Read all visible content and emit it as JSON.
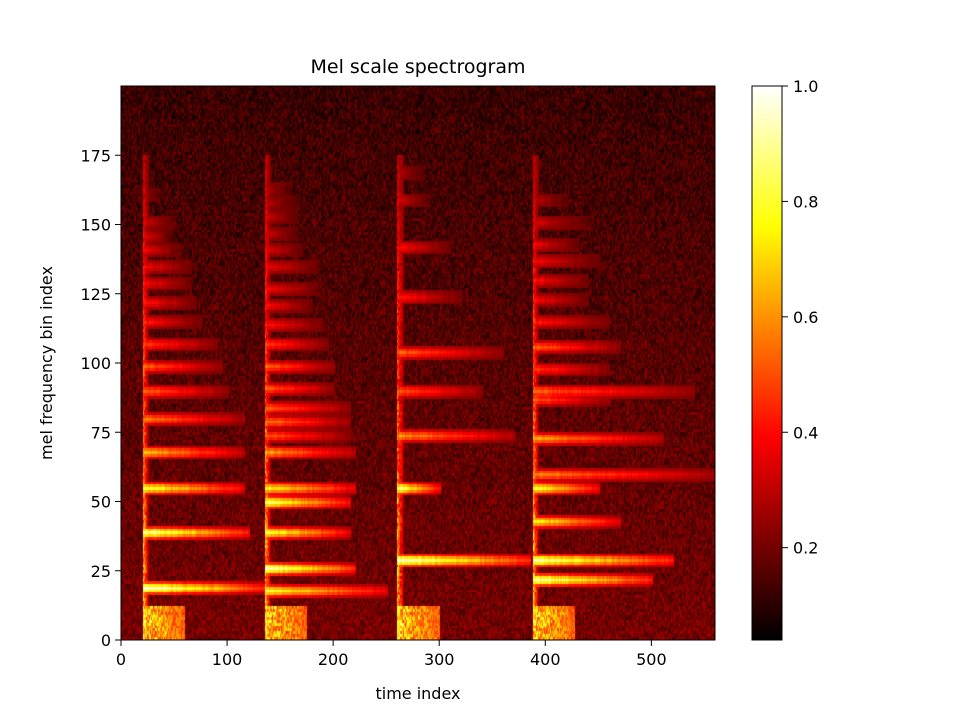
{
  "chart_data": {
    "type": "heatmap",
    "title": "Mel scale spectrogram",
    "xlabel": "time index",
    "ylabel": "mel frequency bin index",
    "xlim": [
      0,
      560
    ],
    "ylim": [
      0,
      200
    ],
    "x_ticks": [
      0,
      100,
      200,
      300,
      400,
      500
    ],
    "x_tick_labels": [
      "0",
      "100",
      "200",
      "300",
      "400",
      "500"
    ],
    "y_ticks": [
      0,
      25,
      50,
      75,
      100,
      125,
      150,
      175
    ],
    "y_tick_labels": [
      "0",
      "25",
      "50",
      "75",
      "100",
      "125",
      "150",
      "175"
    ],
    "colormap": "hot",
    "colorbar": {
      "range": [
        0.04,
        1.0
      ],
      "ticks": [
        0.2,
        0.4,
        0.6,
        0.8,
        1.0
      ],
      "tick_labels": [
        "0.2",
        "0.4",
        "0.6",
        "0.8",
        "1.0"
      ]
    },
    "background_level": 0.2,
    "notes": [
      {
        "onset": 20,
        "end": 135,
        "harmonics": [
          {
            "bin": 18,
            "level": 1.0,
            "decay_end": 135
          },
          {
            "bin": 38,
            "level": 0.95,
            "decay_end": 120
          },
          {
            "bin": 54,
            "level": 0.85,
            "decay_end": 115
          },
          {
            "bin": 67,
            "level": 0.7,
            "decay_end": 115
          },
          {
            "bin": 79,
            "level": 0.6,
            "decay_end": 115
          },
          {
            "bin": 89,
            "level": 0.55,
            "decay_end": 100
          },
          {
            "bin": 98,
            "level": 0.55,
            "decay_end": 95
          },
          {
            "bin": 106,
            "level": 0.5,
            "decay_end": 90
          },
          {
            "bin": 114,
            "level": 0.45,
            "decay_end": 75
          },
          {
            "bin": 121,
            "level": 0.45,
            "decay_end": 70
          },
          {
            "bin": 128,
            "level": 0.42,
            "decay_end": 65
          },
          {
            "bin": 134,
            "level": 0.42,
            "decay_end": 65
          },
          {
            "bin": 140,
            "level": 0.4,
            "decay_end": 55
          },
          {
            "bin": 145,
            "level": 0.38,
            "decay_end": 45
          },
          {
            "bin": 150,
            "level": 0.35,
            "decay_end": 50
          },
          {
            "bin": 160,
            "level": 0.3,
            "decay_end": 35
          }
        ]
      },
      {
        "onset": 135,
        "end": 260,
        "harmonics": [
          {
            "bin": 17,
            "level": 0.85,
            "decay_end": 250
          },
          {
            "bin": 25,
            "level": 1.0,
            "decay_end": 220
          },
          {
            "bin": 38,
            "level": 0.85,
            "decay_end": 215
          },
          {
            "bin": 49,
            "level": 0.9,
            "decay_end": 215
          },
          {
            "bin": 54,
            "level": 0.8,
            "decay_end": 220
          },
          {
            "bin": 67,
            "level": 0.65,
            "decay_end": 220
          },
          {
            "bin": 73,
            "level": 0.55,
            "decay_end": 215
          },
          {
            "bin": 78,
            "level": 0.6,
            "decay_end": 215
          },
          {
            "bin": 83,
            "level": 0.55,
            "decay_end": 215
          },
          {
            "bin": 90,
            "level": 0.55,
            "decay_end": 200
          },
          {
            "bin": 98,
            "level": 0.55,
            "decay_end": 200
          },
          {
            "bin": 106,
            "level": 0.5,
            "decay_end": 195
          },
          {
            "bin": 113,
            "level": 0.45,
            "decay_end": 190
          },
          {
            "bin": 120,
            "level": 0.42,
            "decay_end": 180
          },
          {
            "bin": 126,
            "level": 0.42,
            "decay_end": 185
          },
          {
            "bin": 134,
            "level": 0.4,
            "decay_end": 185
          },
          {
            "bin": 140,
            "level": 0.38,
            "decay_end": 170
          },
          {
            "bin": 146,
            "level": 0.35,
            "decay_end": 165
          },
          {
            "bin": 152,
            "level": 0.35,
            "decay_end": 165
          },
          {
            "bin": 157,
            "level": 0.32,
            "decay_end": 165
          },
          {
            "bin": 162,
            "level": 0.3,
            "decay_end": 160
          }
        ]
      },
      {
        "onset": 260,
        "end": 388,
        "harmonics": [
          {
            "bin": 28,
            "level": 1.0,
            "decay_end": 385
          },
          {
            "bin": 54,
            "level": 0.9,
            "decay_end": 300
          },
          {
            "bin": 73,
            "level": 0.65,
            "decay_end": 370
          },
          {
            "bin": 89,
            "level": 0.55,
            "decay_end": 340
          },
          {
            "bin": 103,
            "level": 0.55,
            "decay_end": 360
          },
          {
            "bin": 123,
            "level": 0.45,
            "decay_end": 320
          },
          {
            "bin": 141,
            "level": 0.42,
            "decay_end": 310
          },
          {
            "bin": 158,
            "level": 0.35,
            "decay_end": 290
          },
          {
            "bin": 168,
            "level": 0.3,
            "decay_end": 285
          }
        ]
      },
      {
        "onset": 388,
        "end": 560,
        "harmonics": [
          {
            "bin": 21,
            "level": 1.0,
            "decay_end": 500
          },
          {
            "bin": 28,
            "level": 0.95,
            "decay_end": 520
          },
          {
            "bin": 42,
            "level": 0.8,
            "decay_end": 470
          },
          {
            "bin": 54,
            "level": 0.85,
            "decay_end": 450
          },
          {
            "bin": 59,
            "level": 0.6,
            "decay_end": 560
          },
          {
            "bin": 72,
            "level": 0.65,
            "decay_end": 510
          },
          {
            "bin": 86,
            "level": 0.55,
            "decay_end": 460
          },
          {
            "bin": 89,
            "level": 0.55,
            "decay_end": 540
          },
          {
            "bin": 97,
            "level": 0.5,
            "decay_end": 460
          },
          {
            "bin": 105,
            "level": 0.55,
            "decay_end": 470
          },
          {
            "bin": 114,
            "level": 0.45,
            "decay_end": 460
          },
          {
            "bin": 122,
            "level": 0.42,
            "decay_end": 440
          },
          {
            "bin": 129,
            "level": 0.42,
            "decay_end": 440
          },
          {
            "bin": 136,
            "level": 0.4,
            "decay_end": 450
          },
          {
            "bin": 142,
            "level": 0.4,
            "decay_end": 430
          },
          {
            "bin": 150,
            "level": 0.35,
            "decay_end": 440
          },
          {
            "bin": 158,
            "level": 0.32,
            "decay_end": 420
          }
        ]
      }
    ]
  }
}
